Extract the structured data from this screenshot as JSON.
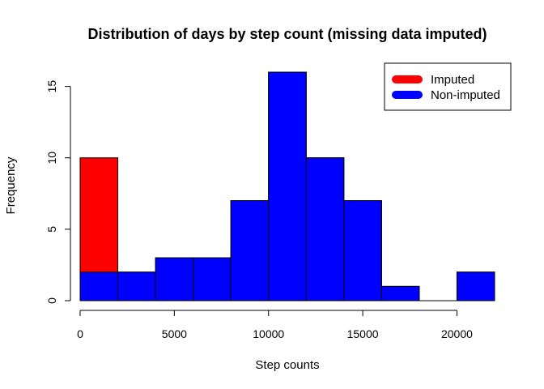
{
  "chart_data": {
    "type": "bar",
    "title": "Distribution of days by step count (missing data imputed)",
    "xlabel": "Step counts",
    "ylabel": "Frequency",
    "bins": [
      {
        "from": 0,
        "to": 2000
      },
      {
        "from": 2000,
        "to": 4000
      },
      {
        "from": 4000,
        "to": 6000
      },
      {
        "from": 6000,
        "to": 8000
      },
      {
        "from": 8000,
        "to": 10000
      },
      {
        "from": 10000,
        "to": 12000
      },
      {
        "from": 12000,
        "to": 14000
      },
      {
        "from": 14000,
        "to": 16000
      },
      {
        "from": 16000,
        "to": 18000
      },
      {
        "from": 18000,
        "to": 20000
      },
      {
        "from": 20000,
        "to": 22000
      }
    ],
    "series": [
      {
        "name": "Imputed",
        "color": "#ff0000",
        "values": [
          10,
          2,
          3,
          3,
          7,
          16,
          10,
          7,
          1,
          0,
          2
        ]
      },
      {
        "name": "Non-imputed",
        "color": "#0000ff",
        "values": [
          2,
          2,
          3,
          3,
          7,
          16,
          10,
          7,
          1,
          0,
          2
        ]
      }
    ],
    "xlim": [
      0,
      22000
    ],
    "ylim": [
      0,
      16
    ],
    "xticks": [
      0,
      5000,
      10000,
      15000,
      20000
    ],
    "xtick_labels": [
      "0",
      "5000",
      "10000",
      "15000",
      "20000"
    ],
    "yticks": [
      0,
      5,
      10,
      15
    ],
    "ytick_labels": [
      "0",
      "5",
      "10",
      "15"
    ],
    "legend": {
      "position": "top-right",
      "entries": [
        {
          "label": "Imputed",
          "color": "#ff0000"
        },
        {
          "label": "Non-imputed",
          "color": "#0000ff"
        }
      ]
    },
    "grid": false
  }
}
